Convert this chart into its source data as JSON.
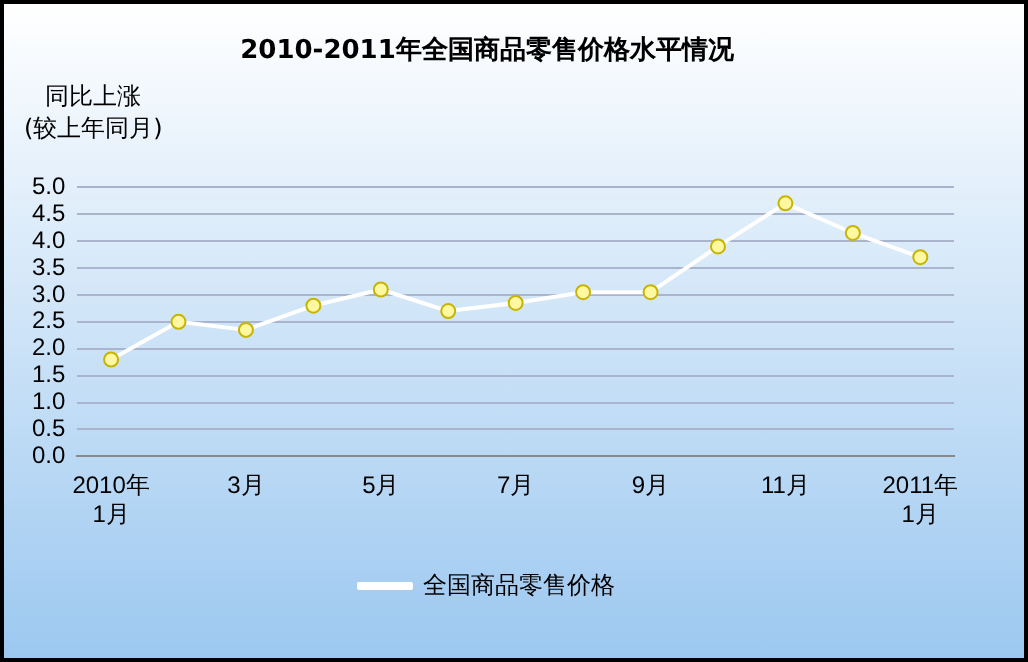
{
  "chart_data": {
    "type": "line",
    "title": "2010-2011年全国商品零售价格水平情况",
    "ylabel": "同比上涨\n(较上年同月)",
    "categories": [
      "2010年\n1月",
      null,
      "3月",
      null,
      "5月",
      null,
      "7月",
      null,
      "9月",
      null,
      "11月",
      null,
      "2011年\n1月"
    ],
    "series": [
      {
        "name": "全国商品零售价格",
        "color": "#ffffff",
        "values": [
          1.8,
          2.5,
          2.35,
          2.8,
          3.1,
          2.7,
          2.85,
          3.05,
          3.05,
          3.9,
          4.7,
          4.15,
          3.7
        ]
      }
    ],
    "ylim": [
      0,
      5
    ],
    "yticks": [
      {
        "value": 0,
        "label": "0.0"
      },
      {
        "value": 0.5,
        "label": "0.5"
      },
      {
        "value": 1,
        "label": "1.0"
      },
      {
        "value": 1.5,
        "label": "1.5"
      },
      {
        "value": 2,
        "label": "2.0"
      },
      {
        "value": 2.5,
        "label": "2.5"
      },
      {
        "value": 3,
        "label": "3.0"
      },
      {
        "value": 3.5,
        "label": "3.5"
      },
      {
        "value": 4,
        "label": "4.0"
      },
      {
        "value": 4.5,
        "label": "4.5"
      },
      {
        "value": 5,
        "label": "5.0"
      }
    ],
    "grid": "y",
    "legend": "bottom",
    "marker": "circle",
    "line_style": "solid"
  }
}
